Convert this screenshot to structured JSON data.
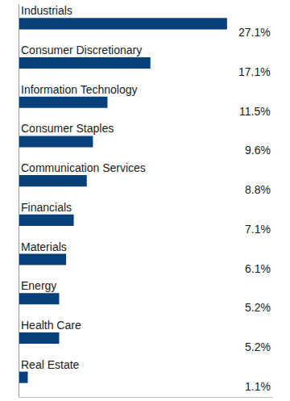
{
  "chart_data": {
    "type": "bar",
    "orientation": "horizontal",
    "categories": [
      "Industrials",
      "Consumer Discretionary",
      "Information Technology",
      "Consumer Staples",
      "Communication Services",
      "Financials",
      "Materials",
      "Energy",
      "Health Care",
      "Real Estate"
    ],
    "values": [
      27.1,
      17.1,
      11.5,
      9.6,
      8.8,
      7.1,
      6.1,
      5.2,
      5.2,
      1.1
    ],
    "value_labels": [
      "27.1%",
      "17.1%",
      "11.5%",
      "9.6%",
      "8.8%",
      "7.1%",
      "6.1%",
      "5.2%",
      "5.2%",
      "1.1%"
    ],
    "color": "#08407a",
    "xlim": [
      0,
      33
    ],
    "data_labels": true,
    "tick_labels": false,
    "grid": false
  }
}
